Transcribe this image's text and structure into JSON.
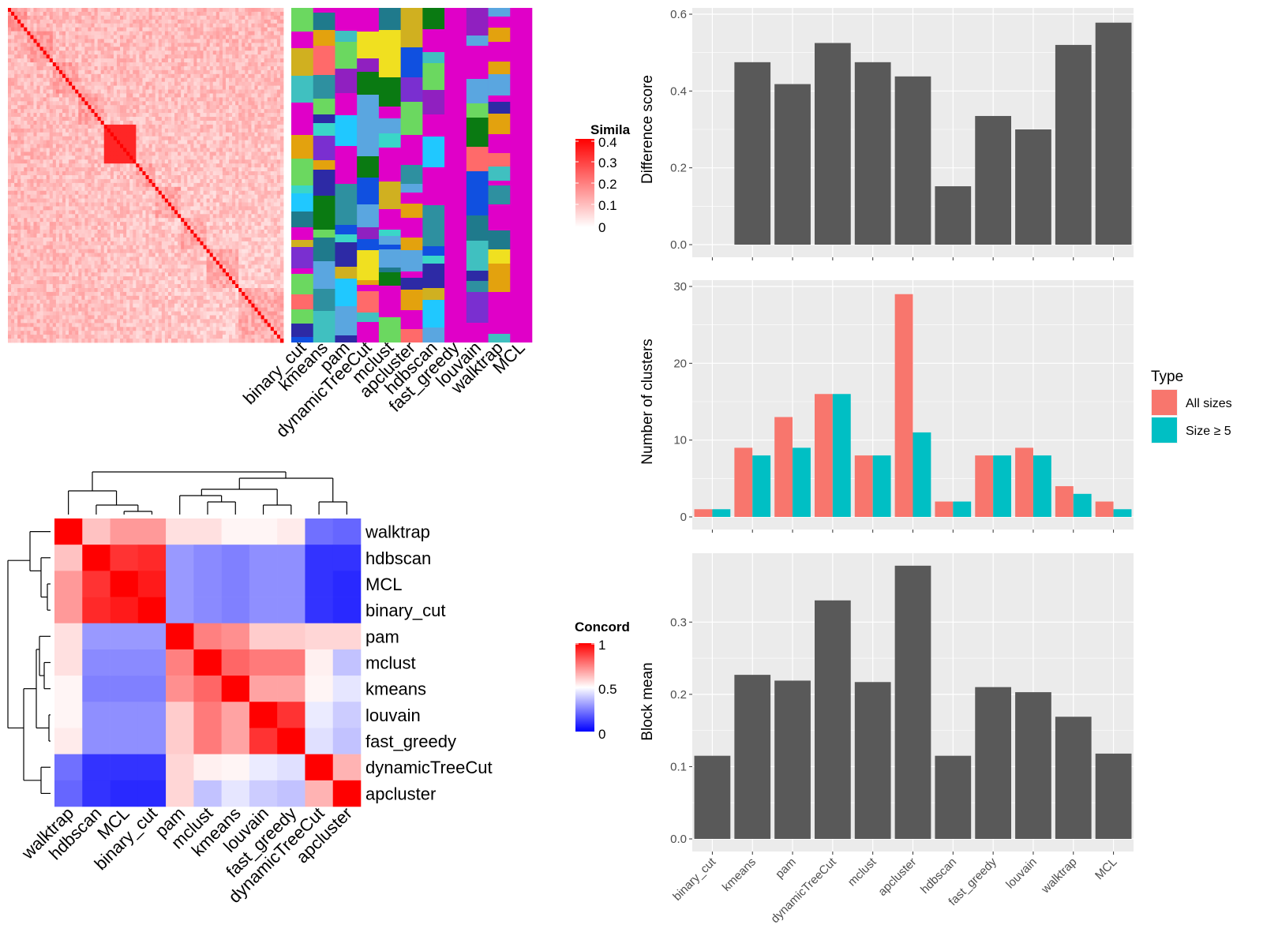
{
  "colors": {
    "panel_bg": "#ebebeb",
    "grid": "#ffffff",
    "bar": "#595959",
    "all_sizes": "#f8766d",
    "size_ge_5": "#00bfc4",
    "sim_high": "#ff0000",
    "conc_low": "#0000ff",
    "conc_mid": "#ffffff",
    "conc_high": "#ff0000",
    "assignment_bg": "#e000c8"
  },
  "similarity_heatmap": {
    "legend_title": "Simila",
    "legend_ticks": [
      "0.4",
      "0.3",
      "0.2",
      "0.1",
      "0"
    ],
    "methods": [
      "binary_cut",
      "kmeans",
      "pam",
      "dynamicTreeCut",
      "mclust",
      "apcluster",
      "hdbscan",
      "fast_greedy",
      "louvain",
      "walktrap",
      "MCL"
    ]
  },
  "concordance_heatmap": {
    "legend_title": "Concord",
    "legend_ticks": [
      "1",
      "0.5",
      "0"
    ],
    "row_labels": [
      "walktrap",
      "hdbscan",
      "MCL",
      "binary_cut",
      "pam",
      "mclust",
      "kmeans",
      "louvain",
      "fast_greedy",
      "dynamicTreeCut",
      "apcluster"
    ],
    "col_labels": [
      "walktrap",
      "hdbscan",
      "MCL",
      "binary_cut",
      "pam",
      "mclust",
      "kmeans",
      "louvain",
      "fast_greedy",
      "dynamicTreeCut",
      "apcluster"
    ],
    "matrix": [
      [
        1.0,
        0.62,
        0.7,
        0.7,
        0.56,
        0.56,
        0.52,
        0.52,
        0.54,
        0.22,
        0.2
      ],
      [
        0.62,
        1.0,
        0.9,
        0.92,
        0.3,
        0.27,
        0.25,
        0.28,
        0.28,
        0.1,
        0.1
      ],
      [
        0.7,
        0.9,
        1.0,
        0.95,
        0.3,
        0.27,
        0.25,
        0.28,
        0.28,
        0.1,
        0.08
      ],
      [
        0.7,
        0.92,
        0.95,
        1.0,
        0.3,
        0.27,
        0.25,
        0.28,
        0.28,
        0.1,
        0.08
      ],
      [
        0.56,
        0.3,
        0.3,
        0.3,
        1.0,
        0.75,
        0.72,
        0.6,
        0.6,
        0.58,
        0.58
      ],
      [
        0.56,
        0.27,
        0.27,
        0.27,
        0.75,
        1.0,
        0.8,
        0.76,
        0.76,
        0.53,
        0.38
      ],
      [
        0.52,
        0.25,
        0.25,
        0.25,
        0.72,
        0.8,
        1.0,
        0.68,
        0.68,
        0.52,
        0.45
      ],
      [
        0.52,
        0.28,
        0.28,
        0.28,
        0.6,
        0.76,
        0.68,
        1.0,
        0.9,
        0.46,
        0.4
      ],
      [
        0.54,
        0.28,
        0.28,
        0.28,
        0.6,
        0.76,
        0.68,
        0.9,
        1.0,
        0.44,
        0.38
      ],
      [
        0.22,
        0.1,
        0.1,
        0.1,
        0.58,
        0.53,
        0.52,
        0.46,
        0.44,
        1.0,
        0.65
      ],
      [
        0.2,
        0.1,
        0.08,
        0.08,
        0.58,
        0.38,
        0.45,
        0.4,
        0.38,
        0.65,
        1.0
      ]
    ]
  },
  "chart_data": [
    {
      "type": "bar",
      "ylabel": "Difference score",
      "categories": [
        "binary_cut",
        "kmeans",
        "pam",
        "dynamicTreeCut",
        "mclust",
        "apcluster",
        "hdbscan",
        "fast_greedy",
        "louvain",
        "walktrap",
        "MCL"
      ],
      "values": [
        0,
        0.475,
        0.418,
        0.525,
        0.475,
        0.438,
        0.152,
        0.335,
        0.3,
        0.52,
        0.578
      ],
      "ylim": [
        0,
        0.6
      ],
      "yticks": [
        "0.0",
        "0.2",
        "0.4",
        "0.6"
      ]
    },
    {
      "type": "bar",
      "ylabel": "Number of clusters",
      "categories": [
        "binary_cut",
        "kmeans",
        "pam",
        "dynamicTreeCut",
        "mclust",
        "apcluster",
        "hdbscan",
        "fast_greedy",
        "louvain",
        "walktrap",
        "MCL"
      ],
      "series": [
        {
          "name": "All sizes",
          "values": [
            1,
            9,
            13,
            16,
            8,
            29,
            2,
            8,
            9,
            4,
            2
          ]
        },
        {
          "name": "Size ≥ 5",
          "values": [
            1,
            8,
            9,
            16,
            8,
            11,
            2,
            8,
            8,
            3,
            1
          ]
        }
      ],
      "legend_title": "Type",
      "legend_position": "right",
      "ylim": [
        0,
        30
      ],
      "yticks": [
        "0",
        "10",
        "20",
        "30"
      ]
    },
    {
      "type": "bar",
      "ylabel": "Block mean",
      "categories": [
        "binary_cut",
        "kmeans",
        "pam",
        "dynamicTreeCut",
        "mclust",
        "apcluster",
        "hdbscan",
        "fast_greedy",
        "louvain",
        "walktrap",
        "MCL"
      ],
      "values": [
        0.115,
        0.227,
        0.219,
        0.33,
        0.217,
        0.378,
        0.115,
        0.21,
        0.203,
        0.169,
        0.118
      ],
      "ylim": [
        0,
        0.38
      ],
      "yticks": [
        "0.0",
        "0.1",
        "0.2",
        "0.3"
      ]
    }
  ]
}
